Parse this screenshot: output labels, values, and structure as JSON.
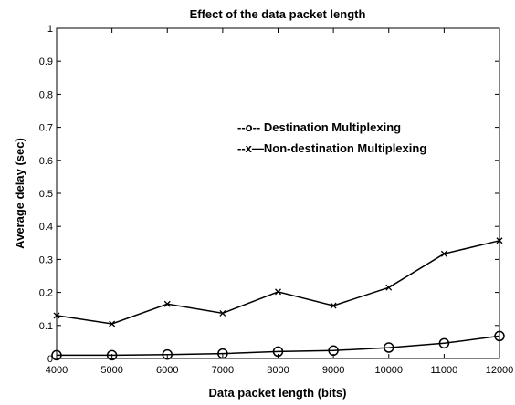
{
  "chart_data": {
    "type": "line",
    "title": "Effect of the data packet length",
    "xlabel": "Data packet length (bits)",
    "ylabel": "Average delay (sec)",
    "xlim": [
      4000,
      12000
    ],
    "ylim": [
      0,
      1
    ],
    "x": [
      4000,
      5000,
      6000,
      7000,
      8000,
      9000,
      10000,
      11000,
      12000
    ],
    "xticks": [
      "4000",
      "5000",
      "6000",
      "7000",
      "8000",
      "9000",
      "10000",
      "11000",
      "12000"
    ],
    "yticks": [
      "0",
      "0.1",
      "0.2",
      "0.3",
      "0.4",
      "0.5",
      "0.6",
      "0.7",
      "0.8",
      "0.9",
      "1"
    ],
    "grid": false,
    "legend_position": "upper-right",
    "series": [
      {
        "name": "Destination Multiplexing",
        "legend_text": "--o-- Destination Multiplexing",
        "marker": "circle",
        "values": [
          0.01,
          0.01,
          0.012,
          0.015,
          0.021,
          0.024,
          0.033,
          0.046,
          0.068
        ]
      },
      {
        "name": "Non-destination Multiplexing",
        "legend_text": "--x—Non-destination Multiplexing",
        "marker": "x",
        "values": [
          0.13,
          0.105,
          0.165,
          0.137,
          0.202,
          0.16,
          0.215,
          0.317,
          0.357
        ]
      }
    ]
  }
}
